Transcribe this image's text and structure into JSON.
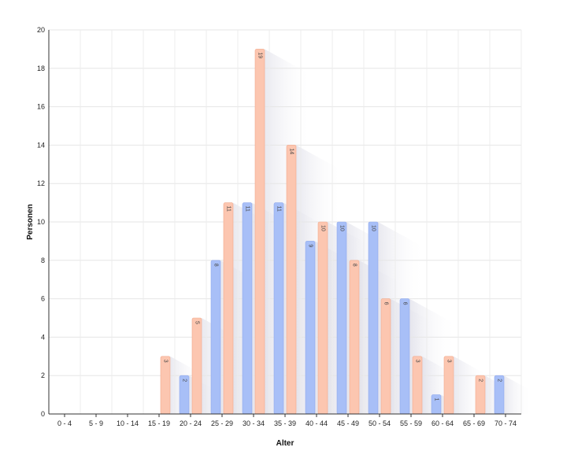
{
  "chart_data": {
    "type": "bar",
    "xlabel": "Alter",
    "ylabel": "Personen",
    "ylim": [
      0,
      20
    ],
    "yticks": [
      0,
      2,
      4,
      6,
      8,
      10,
      12,
      14,
      16,
      18,
      20
    ],
    "grid": true,
    "categories": [
      "0 - 4",
      "5 - 9",
      "10 - 14",
      "15 - 19",
      "20 - 24",
      "25 - 29",
      "30 - 34",
      "35 - 39",
      "40 - 44",
      "45 - 49",
      "50 - 54",
      "55 - 59",
      "60 - 64",
      "65 - 69",
      "70 - 74"
    ],
    "series": [
      {
        "color": "#a8bff7",
        "stroke": "#8fa9ee",
        "values": [
          0,
          0,
          0,
          0,
          2,
          8,
          11,
          11,
          9,
          10,
          10,
          6,
          1,
          0,
          2
        ]
      },
      {
        "color": "#fcc6b0",
        "stroke": "#f2a98c",
        "values": [
          0,
          0,
          0,
          3,
          5,
          11,
          19,
          14,
          10,
          8,
          6,
          3,
          3,
          2,
          0
        ]
      }
    ]
  }
}
